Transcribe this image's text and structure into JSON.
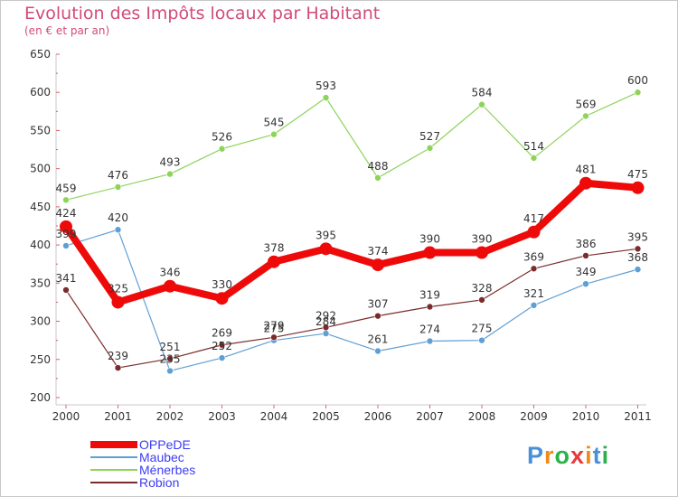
{
  "header": {
    "title": "Evolution des Impôts locaux par Habitant",
    "subtitle": "(en € et par an)"
  },
  "chart_data": {
    "type": "line",
    "title": "Evolution des Impôts locaux par Habitant",
    "subtitle": "(en € et par an)",
    "xlabel": "",
    "ylabel": "",
    "x": [
      "2000",
      "2001",
      "2002",
      "2003",
      "2004",
      "2005",
      "2006",
      "2007",
      "2008",
      "2009",
      "2010",
      "2011"
    ],
    "ylim": [
      200,
      650
    ],
    "yticks": [
      200,
      250,
      300,
      350,
      400,
      450,
      500,
      550,
      600,
      650
    ],
    "grid": false,
    "legend_position": "bottom-left",
    "series": [
      {
        "name": "OPPeDE",
        "color": "#ef0a0a",
        "values": [
          424,
          325,
          346,
          330,
          378,
          395,
          374,
          390,
          390,
          417,
          481,
          475
        ]
      },
      {
        "name": "Maubec",
        "color": "#5f9fd4",
        "values": [
          399,
          420,
          235,
          252,
          275,
          284,
          261,
          274,
          275,
          321,
          349,
          368
        ]
      },
      {
        "name": "Ménerbes",
        "color": "#8ed35a",
        "values": [
          459,
          476,
          493,
          526,
          545,
          593,
          488,
          527,
          584,
          514,
          569,
          600
        ]
      },
      {
        "name": "Robion",
        "color": "#7a2c2c",
        "values": [
          341,
          239,
          251,
          269,
          279,
          292,
          307,
          319,
          328,
          369,
          386,
          395
        ]
      }
    ]
  },
  "brand": {
    "letters": [
      "P",
      "r",
      "o",
      "x",
      "i",
      "t",
      "i"
    ],
    "colors": [
      "#4a90d9",
      "#f08a1c",
      "#2bb24c",
      "#e63c3c",
      "#f08a1c",
      "#4a90d9",
      "#2bb24c"
    ]
  }
}
